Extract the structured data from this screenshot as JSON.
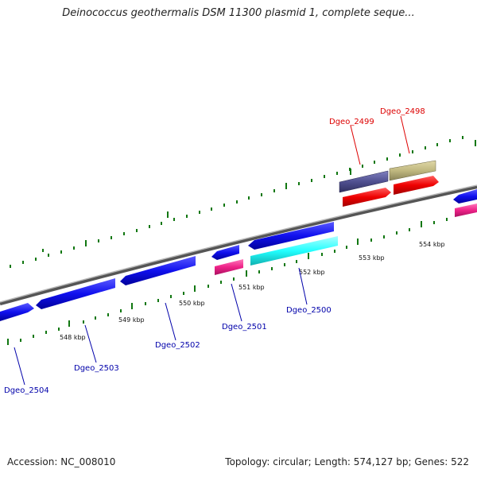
{
  "title": "Deinococcus geothermalis DSM 11300 plasmid 1, complete seque...",
  "footer": {
    "accession": "Accession: NC_008010",
    "summary": "Topology: circular; Length: 574,127 bp; Genes: 522"
  },
  "kbp_labels": [
    "548 kbp",
    "549 kbp",
    "550 kbp",
    "551 kbp",
    "552 kbp",
    "553 kbp",
    "554 kbp"
  ],
  "gene_labels": [
    {
      "name": "Dgeo_2504",
      "color": "#0000aa"
    },
    {
      "name": "Dgeo_2503",
      "color": "#0000aa"
    },
    {
      "name": "Dgeo_2502",
      "color": "#0000aa"
    },
    {
      "name": "Dgeo_2501",
      "color": "#0000aa"
    },
    {
      "name": "Dgeo_2500",
      "color": "#0000aa"
    },
    {
      "name": "Dgeo_2499",
      "color": "#dd0000"
    },
    {
      "name": "Dgeo_2498",
      "color": "#dd0000"
    }
  ],
  "colors": {
    "gene_blue": "#1010ee",
    "rna_magenta": "#ee2288",
    "feature_cyan": "#22ffff",
    "feature_red": "#ee0000",
    "feature_purple": "#505090",
    "feature_khaki": "#c0b880",
    "backbone": "#888888",
    "tick_green": "#117711"
  }
}
